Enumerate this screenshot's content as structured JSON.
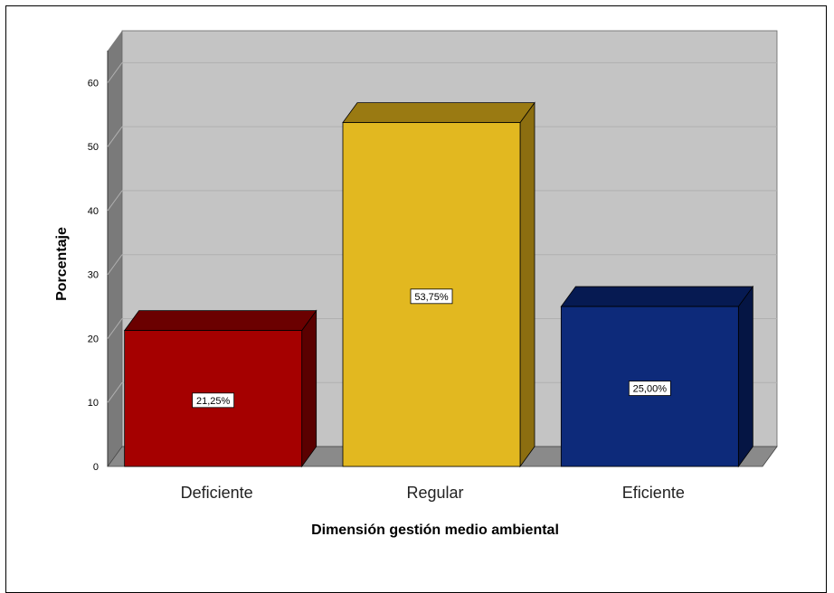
{
  "chart_data": {
    "type": "bar",
    "categories": [
      "Deficiente",
      "Regular",
      "Eficiente"
    ],
    "values": [
      21.25,
      53.75,
      25.0
    ],
    "data_labels": [
      "21,25%",
      "53,75%",
      "25,00%"
    ],
    "xlabel": "Dimensión gestión medio ambiental",
    "ylabel": "Porcentaje",
    "ylim": [
      0,
      65
    ],
    "yticks": [
      0,
      10,
      20,
      30,
      40,
      50,
      60
    ],
    "grid": true,
    "three_d": true,
    "colors": {
      "bars": [
        "#a50000",
        "#e2b820",
        "#0d2a7a"
      ],
      "bars_top": [
        "#6b0000",
        "#9a7a12",
        "#061a52"
      ],
      "bars_side": [
        "#5a0000",
        "#8c6e10",
        "#051544"
      ],
      "wall": "#c4c4c4",
      "wall_side": "#7a7a7a",
      "floor": "#8a8a8a",
      "gridline": "#b0b0b0"
    }
  }
}
